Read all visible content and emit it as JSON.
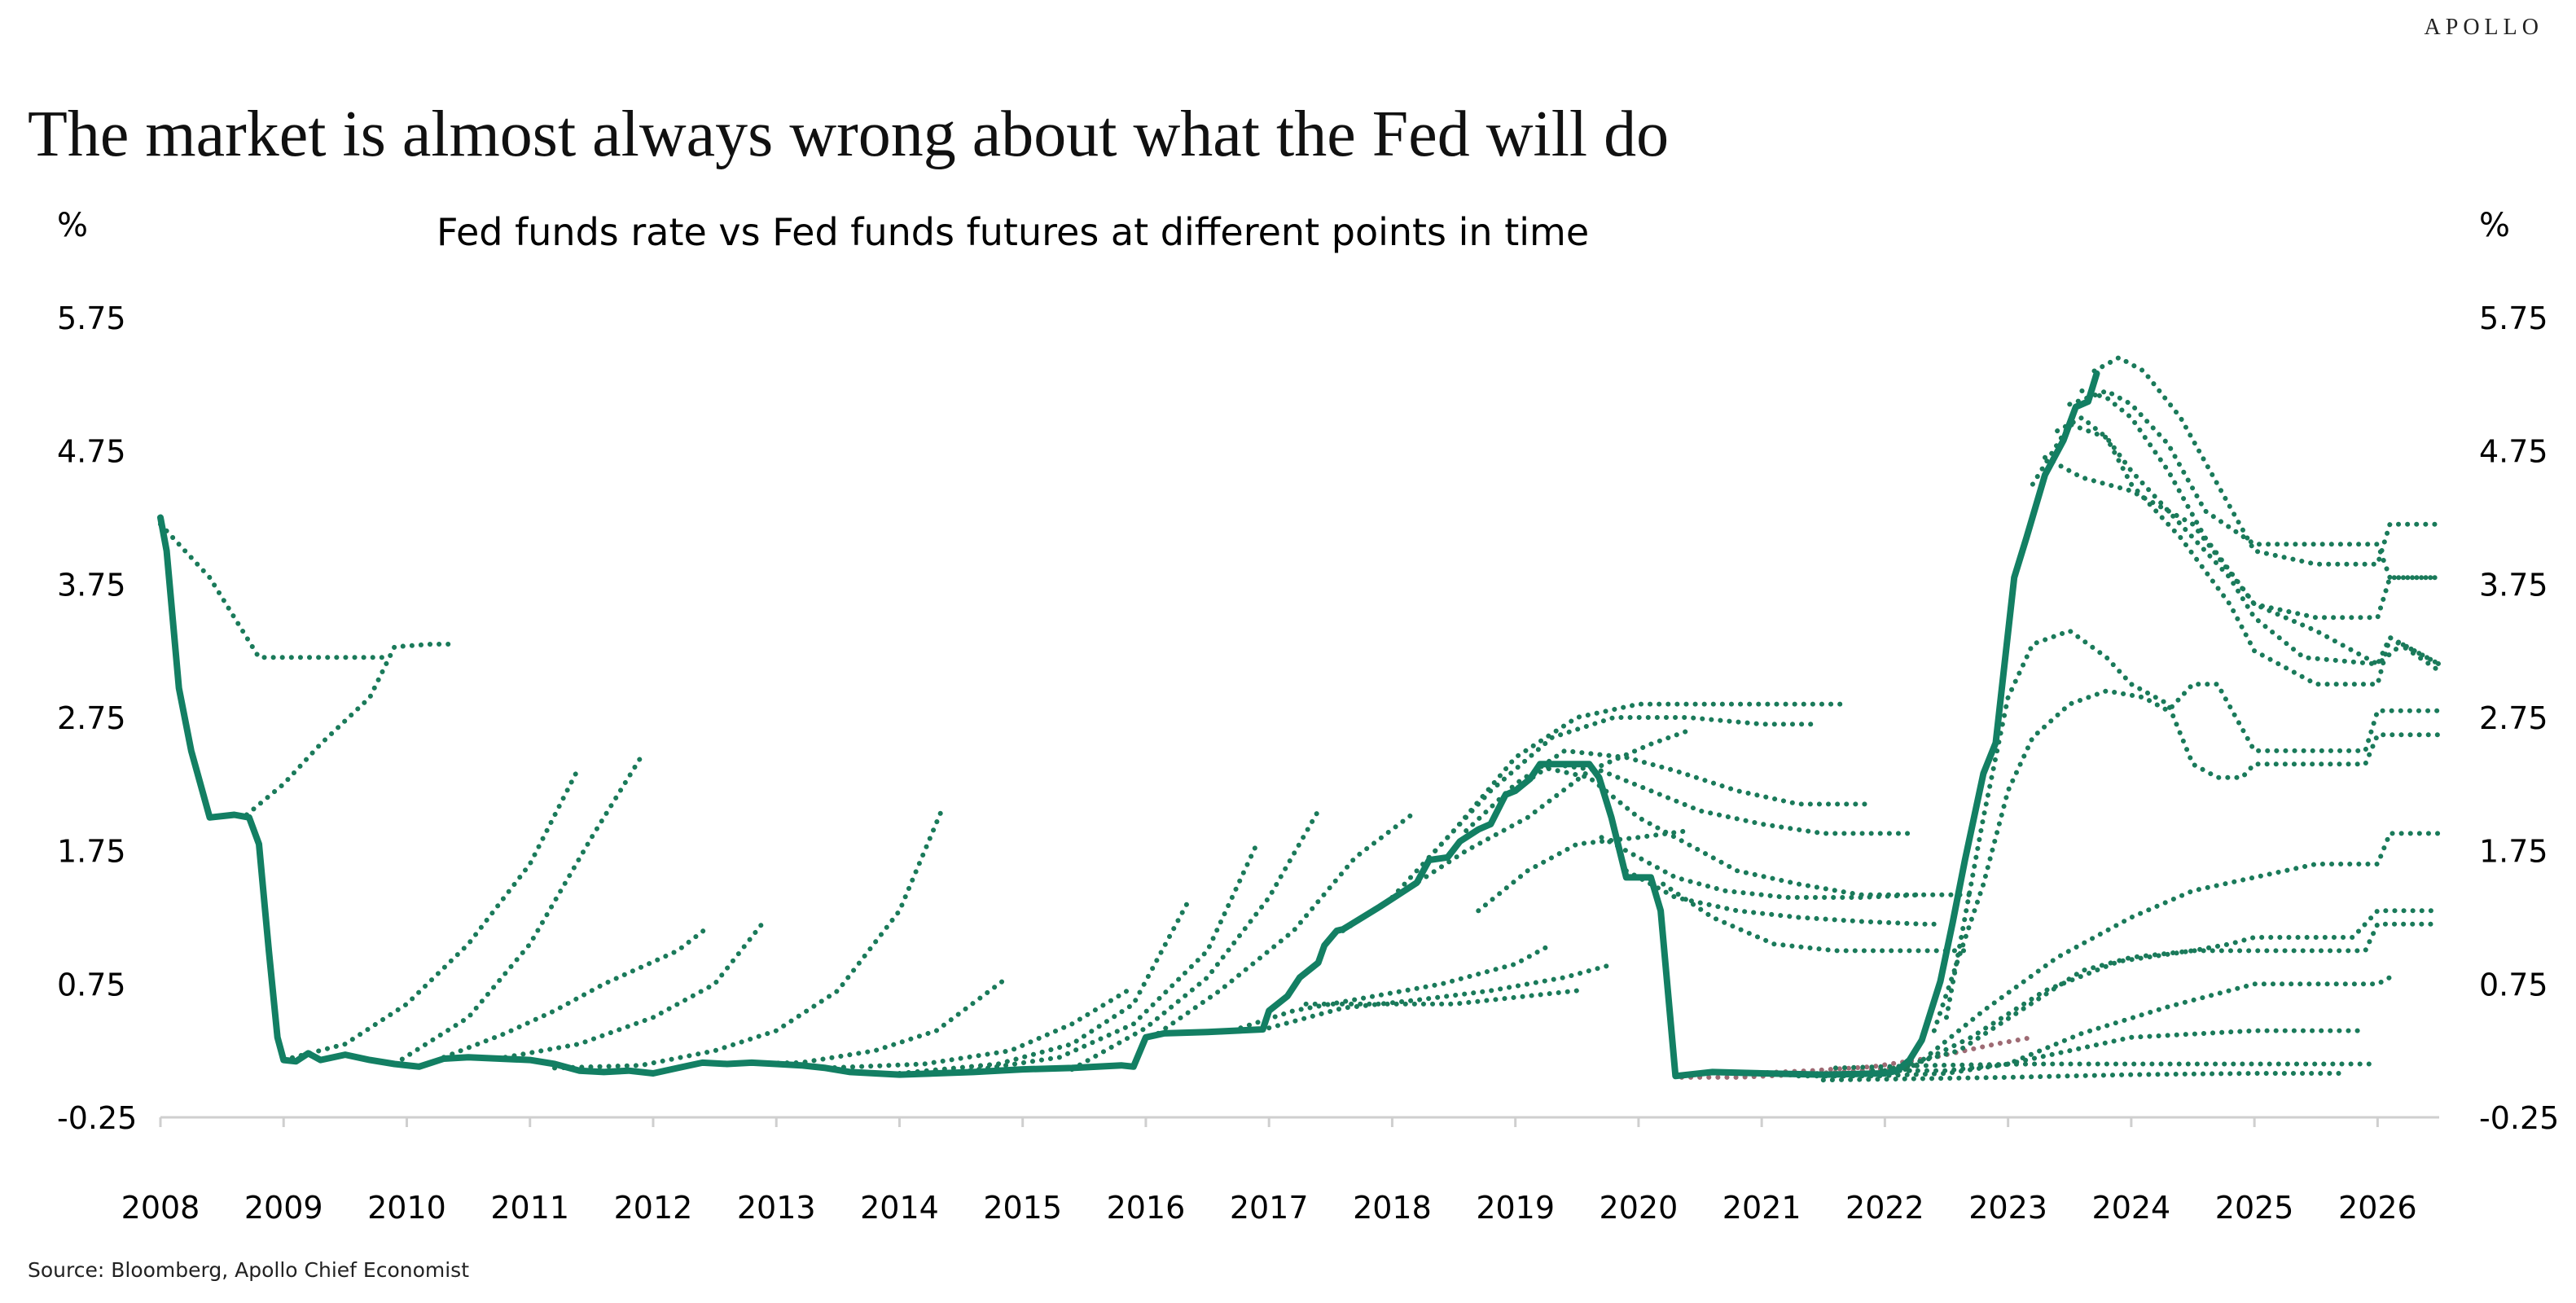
{
  "brand": "APOLLO",
  "headline": "The market is almost always wrong about what the Fed will do",
  "source": "Source: Bloomberg, Apollo Chief Economist",
  "colors": {
    "actual": "#137f63",
    "futures": "#1a7a5a",
    "futures_alt": "#9e6b74"
  },
  "chart_data": {
    "type": "line",
    "title": "Fed funds rate vs Fed funds futures at different points in time",
    "ylabel_left": "%",
    "ylabel_right": "%",
    "xlabel": "",
    "ylim": [
      -0.25,
      5.75
    ],
    "xlim": [
      2008,
      2026.5
    ],
    "y_ticks": [
      "5.75",
      "4.75",
      "3.75",
      "2.75",
      "1.75",
      "0.75",
      "-0.25"
    ],
    "y_tick_values": [
      5.75,
      4.75,
      3.75,
      2.75,
      1.75,
      0.75,
      -0.25
    ],
    "x_ticks": [
      "2008",
      "2009",
      "2010",
      "2011",
      "2012",
      "2013",
      "2014",
      "2015",
      "2016",
      "2017",
      "2018",
      "2019",
      "2020",
      "2021",
      "2022",
      "2023",
      "2024",
      "2025",
      "2026"
    ],
    "grid": false,
    "legend": "none",
    "series": [
      {
        "style": "solid",
        "x": [
          2008.0,
          2008.05,
          2008.15,
          2008.25,
          2008.4,
          2008.6,
          2008.72,
          2008.8,
          2008.88,
          2008.95,
          2009.0,
          2009.1,
          2009.2,
          2009.3,
          2009.5,
          2009.7,
          2009.9,
          2010.1,
          2010.3,
          2010.5,
          2011.0,
          2011.2,
          2011.4,
          2011.6,
          2011.8,
          2012.0,
          2012.2,
          2012.4,
          2012.6,
          2012.8,
          2013.0,
          2013.2,
          2013.4,
          2013.6,
          2013.8,
          2014.0,
          2014.3,
          2014.6,
          2014.8,
          2015.0,
          2015.4,
          2015.8,
          2015.9,
          2016.0,
          2016.15,
          2016.5,
          2016.95,
          2017.0,
          2017.15,
          2017.25,
          2017.4,
          2017.45,
          2017.55,
          2017.6,
          2017.9,
          2018.05,
          2018.2,
          2018.3,
          2018.45,
          2018.55,
          2018.7,
          2018.8,
          2018.92,
          2019.0,
          2019.12,
          2019.2,
          2019.6,
          2019.68,
          2019.78,
          2019.9,
          2020.1,
          2020.18,
          2020.3,
          2020.6,
          2021.0,
          2021.5,
          2022.0,
          2022.1,
          2022.2,
          2022.3,
          2022.45,
          2022.55,
          2022.65,
          2022.8,
          2022.9,
          2023.05,
          2023.15,
          2023.3,
          2023.45,
          2023.55,
          2023.65,
          2023.72
        ],
        "values": [
          4.25,
          4.0,
          2.97,
          2.5,
          2.0,
          2.02,
          2.0,
          1.8,
          1.0,
          0.35,
          0.18,
          0.17,
          0.23,
          0.18,
          0.22,
          0.18,
          0.15,
          0.13,
          0.19,
          0.2,
          0.18,
          0.15,
          0.1,
          0.09,
          0.1,
          0.08,
          0.12,
          0.16,
          0.15,
          0.16,
          0.15,
          0.14,
          0.12,
          0.09,
          0.08,
          0.07,
          0.08,
          0.09,
          0.1,
          0.11,
          0.12,
          0.14,
          0.13,
          0.35,
          0.38,
          0.39,
          0.41,
          0.55,
          0.66,
          0.8,
          0.91,
          1.04,
          1.15,
          1.16,
          1.33,
          1.42,
          1.51,
          1.68,
          1.7,
          1.82,
          1.91,
          1.95,
          2.17,
          2.2,
          2.29,
          2.4,
          2.4,
          2.3,
          2.0,
          1.55,
          1.55,
          1.3,
          0.06,
          0.09,
          0.08,
          0.07,
          0.08,
          0.1,
          0.18,
          0.33,
          0.77,
          1.21,
          1.68,
          2.33,
          2.56,
          3.8,
          4.1,
          4.57,
          4.83,
          5.08,
          5.12,
          5.33
        ]
      }
    ],
    "futures": [
      {
        "x": [
          2008.0,
          2008.4,
          2008.8,
          2009.0,
          2009.8
        ],
        "values": [
          4.2,
          3.8,
          3.2,
          3.2,
          3.2
        ]
      },
      {
        "x": [
          2008.7,
          2009.0,
          2009.3,
          2009.7,
          2009.9,
          2010.2,
          2010.4
        ],
        "values": [
          2.02,
          2.25,
          2.55,
          2.9,
          3.28,
          3.3,
          3.3
        ]
      },
      {
        "x": [
          2009.0,
          2009.5,
          2010.0,
          2010.5,
          2011.0,
          2011.4
        ],
        "values": [
          0.18,
          0.3,
          0.6,
          1.05,
          1.65,
          2.38
        ]
      },
      {
        "x": [
          2009.9,
          2010.5,
          2011.0,
          2011.5,
          2011.9
        ],
        "values": [
          0.15,
          0.5,
          1.05,
          1.85,
          2.45
        ]
      },
      {
        "x": [
          2010.3,
          2010.8,
          2011.2,
          2011.6,
          2012.2,
          2012.45
        ],
        "values": [
          0.2,
          0.38,
          0.55,
          0.75,
          1.0,
          1.18
        ]
      },
      {
        "x": [
          2010.8,
          2011.4,
          2012.0,
          2012.5,
          2012.9
        ],
        "values": [
          0.2,
          0.3,
          0.5,
          0.75,
          1.22
        ]
      },
      {
        "x": [
          2011.2,
          2011.9,
          2012.5,
          2013.0,
          2013.5,
          2014.0,
          2014.35
        ],
        "values": [
          0.12,
          0.14,
          0.25,
          0.4,
          0.7,
          1.3,
          2.07
        ]
      },
      {
        "x": [
          2012.5,
          2013.2,
          2013.8,
          2014.3,
          2014.85
        ],
        "values": [
          0.15,
          0.16,
          0.25,
          0.4,
          0.78
        ]
      },
      {
        "x": [
          2013.4,
          2014.2,
          2014.9,
          2015.4,
          2015.85
        ],
        "values": [
          0.12,
          0.15,
          0.25,
          0.45,
          0.7
        ]
      },
      {
        "x": [
          2014.0,
          2014.8,
          2015.4,
          2015.9,
          2016.35
        ],
        "values": [
          0.08,
          0.15,
          0.3,
          0.6,
          1.38
        ]
      },
      {
        "x": [
          2014.5,
          2015.3,
          2015.9,
          2016.5,
          2016.9
        ],
        "values": [
          0.09,
          0.2,
          0.45,
          1.0,
          1.8
        ]
      },
      {
        "x": [
          2015.4,
          2016.0,
          2016.5,
          2017.0,
          2017.4
        ],
        "values": [
          0.11,
          0.42,
          0.8,
          1.4,
          2.05
        ]
      },
      {
        "x": [
          2016.1,
          2016.6,
          2017.2,
          2017.7,
          2018.2
        ],
        "values": [
          0.38,
          0.7,
          1.15,
          1.7,
          2.05
        ]
      },
      {
        "x": [
          2016.7,
          2017.2,
          2017.8,
          2018.4,
          2019.0,
          2019.3
        ],
        "values": [
          0.4,
          0.55,
          0.65,
          0.75,
          0.9,
          1.05
        ]
      },
      {
        "x": [
          2017.0,
          2017.6,
          2018.2,
          2018.8,
          2019.4,
          2019.8
        ],
        "values": [
          0.42,
          0.57,
          0.63,
          0.7,
          0.8,
          0.9
        ]
      },
      {
        "x": [
          2017.3,
          2017.9,
          2018.5,
          2019.0,
          2019.5
        ],
        "values": [
          0.6,
          0.6,
          0.6,
          0.65,
          0.7
        ]
      },
      {
        "x": [
          2017.6,
          2018.1,
          2018.6,
          2019.1,
          2019.6,
          2020.1,
          2020.4
        ],
        "values": [
          1.15,
          1.45,
          1.75,
          2.0,
          2.35,
          2.55,
          2.65
        ]
      },
      {
        "x": [
          2018.0,
          2018.5,
          2019.0,
          2019.5,
          2020.0,
          2020.5,
          2021.0,
          2021.7
        ],
        "values": [
          1.4,
          1.9,
          2.45,
          2.75,
          2.85,
          2.85,
          2.85,
          2.85
        ]
      },
      {
        "x": [
          2018.3,
          2018.8,
          2019.3,
          2019.8,
          2020.4,
          2021.0,
          2021.45
        ],
        "values": [
          1.7,
          2.2,
          2.6,
          2.75,
          2.75,
          2.7,
          2.7
        ]
      },
      {
        "x": [
          2018.6,
          2019.0,
          2019.4,
          2019.9,
          2020.3,
          2020.8,
          2021.3,
          2021.85
        ],
        "values": [
          1.9,
          2.25,
          2.5,
          2.45,
          2.35,
          2.2,
          2.1,
          2.1
        ]
      },
      {
        "x": [
          2018.9,
          2019.3,
          2019.7,
          2020.1,
          2020.5,
          2021.0,
          2021.5,
          2022.2
        ],
        "values": [
          2.15,
          2.4,
          2.35,
          2.2,
          2.05,
          1.95,
          1.88,
          1.88
        ]
      },
      {
        "x": [
          2018.7,
          2019.1,
          2019.5,
          2020.0,
          2020.4
        ],
        "values": [
          1.3,
          1.6,
          1.8,
          1.85,
          1.9
        ]
      },
      {
        "x": [
          2019.2,
          2019.6,
          2020.0,
          2020.4,
          2020.8,
          2021.3,
          2021.8,
          2022.25
        ],
        "values": [
          2.38,
          2.3,
          2.0,
          1.8,
          1.6,
          1.5,
          1.42,
          1.42
        ]
      },
      {
        "x": [
          2019.7,
          2020.0,
          2020.3,
          2020.7,
          2021.2,
          2021.8,
          2022.3,
          2022.7
        ],
        "values": [
          1.85,
          1.7,
          1.55,
          1.45,
          1.4,
          1.4,
          1.42,
          1.42
        ]
      },
      {
        "x": [
          2019.9,
          2020.3,
          2020.8,
          2021.3,
          2021.8,
          2022.3,
          2022.4
        ],
        "values": [
          1.6,
          1.4,
          1.3,
          1.25,
          1.22,
          1.2,
          1.2
        ]
      },
      {
        "x": [
          2020.2,
          2020.6,
          2021.1,
          2021.6,
          2022.1,
          2022.7
        ],
        "values": [
          1.5,
          1.25,
          1.05,
          1.0,
          1.0,
          1.0
        ]
      },
      {
        "x": [
          2020.35,
          2020.8,
          2021.3,
          2021.8,
          2022.3
        ],
        "values": [
          0.05,
          0.05,
          0.07,
          0.1,
          0.14
        ],
        "alt": true
      },
      {
        "x": [
          2020.9,
          2021.4,
          2021.9,
          2022.4,
          2022.9,
          2023.2
        ],
        "values": [
          0.08,
          0.1,
          0.13,
          0.2,
          0.3,
          0.35
        ],
        "alt": true
      },
      {
        "x": [
          2021.3,
          2021.9,
          2022.5,
          2023.0,
          2023.6,
          2024.3,
          2025.0,
          2025.8,
          2026.0,
          2026.1
        ],
        "values": [
          0.06,
          0.06,
          0.08,
          0.15,
          0.38,
          0.58,
          0.75,
          0.75,
          0.75,
          0.8
        ]
      },
      {
        "x": [
          2021.9,
          2022.5,
          2023.0,
          2023.5,
          2024.0,
          2025.0,
          2025.5,
          2025.9
        ],
        "values": [
          0.1,
          0.1,
          0.15,
          0.25,
          0.35,
          0.4,
          0.4,
          0.4
        ]
      },
      {
        "x": [
          2021.5,
          2022.3,
          2023.0,
          2024.0,
          2025.0,
          2025.7
        ],
        "values": [
          0.03,
          0.04,
          0.05,
          0.07,
          0.08,
          0.08
        ]
      },
      {
        "x": [
          2021.6,
          2022.4,
          2023.2,
          2024.2,
          2025.3,
          2026.0
        ],
        "values": [
          0.12,
          0.14,
          0.15,
          0.15,
          0.15,
          0.15
        ]
      },
      {
        "x": [
          2022.0,
          2022.6,
          2023.1,
          2023.6,
          2024.0,
          2024.5,
          2024.8,
          2025.0,
          2025.8,
          2026.0,
          2026.5
        ],
        "values": [
          0.1,
          0.25,
          0.55,
          0.85,
          0.95,
          1.0,
          1.05,
          1.1,
          1.1,
          1.3,
          1.3
        ]
      },
      {
        "x": [
          2022.1,
          2022.7,
          2023.3,
          2023.9,
          2024.5,
          2025.0,
          2025.9,
          2026.0,
          2026.5
        ],
        "values": [
          0.08,
          0.35,
          0.7,
          0.92,
          1.0,
          1.0,
          1.0,
          1.2,
          1.2
        ]
      },
      {
        "x": [
          2022.2,
          2022.8,
          2023.4,
          2024.0,
          2024.5,
          2025.0,
          2025.5,
          2026.0,
          2026.1,
          2026.5
        ],
        "values": [
          0.1,
          0.55,
          0.95,
          1.25,
          1.45,
          1.55,
          1.65,
          1.65,
          1.88,
          1.88
        ]
      },
      {
        "x": [
          2022.4,
          2022.8,
          2023.0,
          2023.2,
          2023.5,
          2023.8,
          2024.1,
          2024.3,
          2024.5,
          2024.7,
          2025.0,
          2025.9,
          2026.0,
          2026.5
        ],
        "values": [
          0.4,
          1.5,
          2.2,
          2.6,
          2.85,
          2.95,
          2.9,
          2.8,
          3.0,
          3.0,
          2.5,
          2.5,
          2.8,
          2.8
        ]
      },
      {
        "x": [
          2022.5,
          2022.8,
          2023.0,
          2023.2,
          2023.5,
          2023.8,
          2024.0,
          2024.3,
          2024.5,
          2024.7,
          2024.9,
          2025.0,
          2025.9,
          2026.0,
          2026.5
        ],
        "values": [
          0.5,
          2.0,
          2.9,
          3.3,
          3.4,
          3.2,
          3.0,
          2.85,
          2.4,
          2.3,
          2.3,
          2.4,
          2.4,
          2.62,
          2.62
        ]
      },
      {
        "x": [
          2023.3,
          2023.6,
          2024.0,
          2024.5,
          2025.0,
          2025.5,
          2026.0,
          2026.2,
          2026.5
        ],
        "values": [
          4.7,
          4.55,
          4.45,
          4.2,
          3.6,
          3.4,
          3.15,
          3.3,
          3.15
        ]
      },
      {
        "x": [
          2023.2,
          2023.5,
          2023.8,
          2024.0,
          2024.4,
          2024.8,
          2025.0,
          2025.5,
          2026.0,
          2026.1,
          2026.5
        ],
        "values": [
          4.5,
          4.95,
          4.85,
          4.5,
          4.1,
          3.6,
          3.25,
          3.0,
          3.0,
          3.35,
          3.1
        ]
      },
      {
        "x": [
          2023.4,
          2023.6,
          2023.8,
          2024.0,
          2024.4,
          2024.8,
          2025.0,
          2025.4,
          2026.0,
          2026.1,
          2026.5
        ],
        "values": [
          4.9,
          5.0,
          4.85,
          4.6,
          4.2,
          3.8,
          3.5,
          3.2,
          3.15,
          3.35,
          3.15
        ]
      },
      {
        "x": [
          2023.6,
          2023.8,
          2024.0,
          2024.3,
          2024.6,
          2025.0,
          2025.5,
          2026.0,
          2026.1,
          2026.5
        ],
        "values": [
          5.2,
          5.15,
          5.0,
          4.6,
          4.1,
          3.6,
          3.5,
          3.5,
          3.8,
          3.8
        ]
      },
      {
        "x": [
          2023.7,
          2023.9,
          2024.1,
          2024.4,
          2024.7,
          2025.0,
          2025.5,
          2026.0,
          2026.1,
          2026.5
        ],
        "values": [
          5.35,
          5.45,
          5.35,
          5.0,
          4.5,
          4.0,
          3.9,
          3.9,
          4.2,
          4.2
        ]
      },
      {
        "x": [
          2023.5,
          2023.8,
          2024.0,
          2024.3,
          2024.6,
          2025.0,
          2025.5,
          2026.0,
          2026.1,
          2026.5
        ],
        "values": [
          5.1,
          5.2,
          5.1,
          4.8,
          4.3,
          4.05,
          4.05,
          4.05,
          3.8,
          3.8
        ]
      }
    ]
  }
}
